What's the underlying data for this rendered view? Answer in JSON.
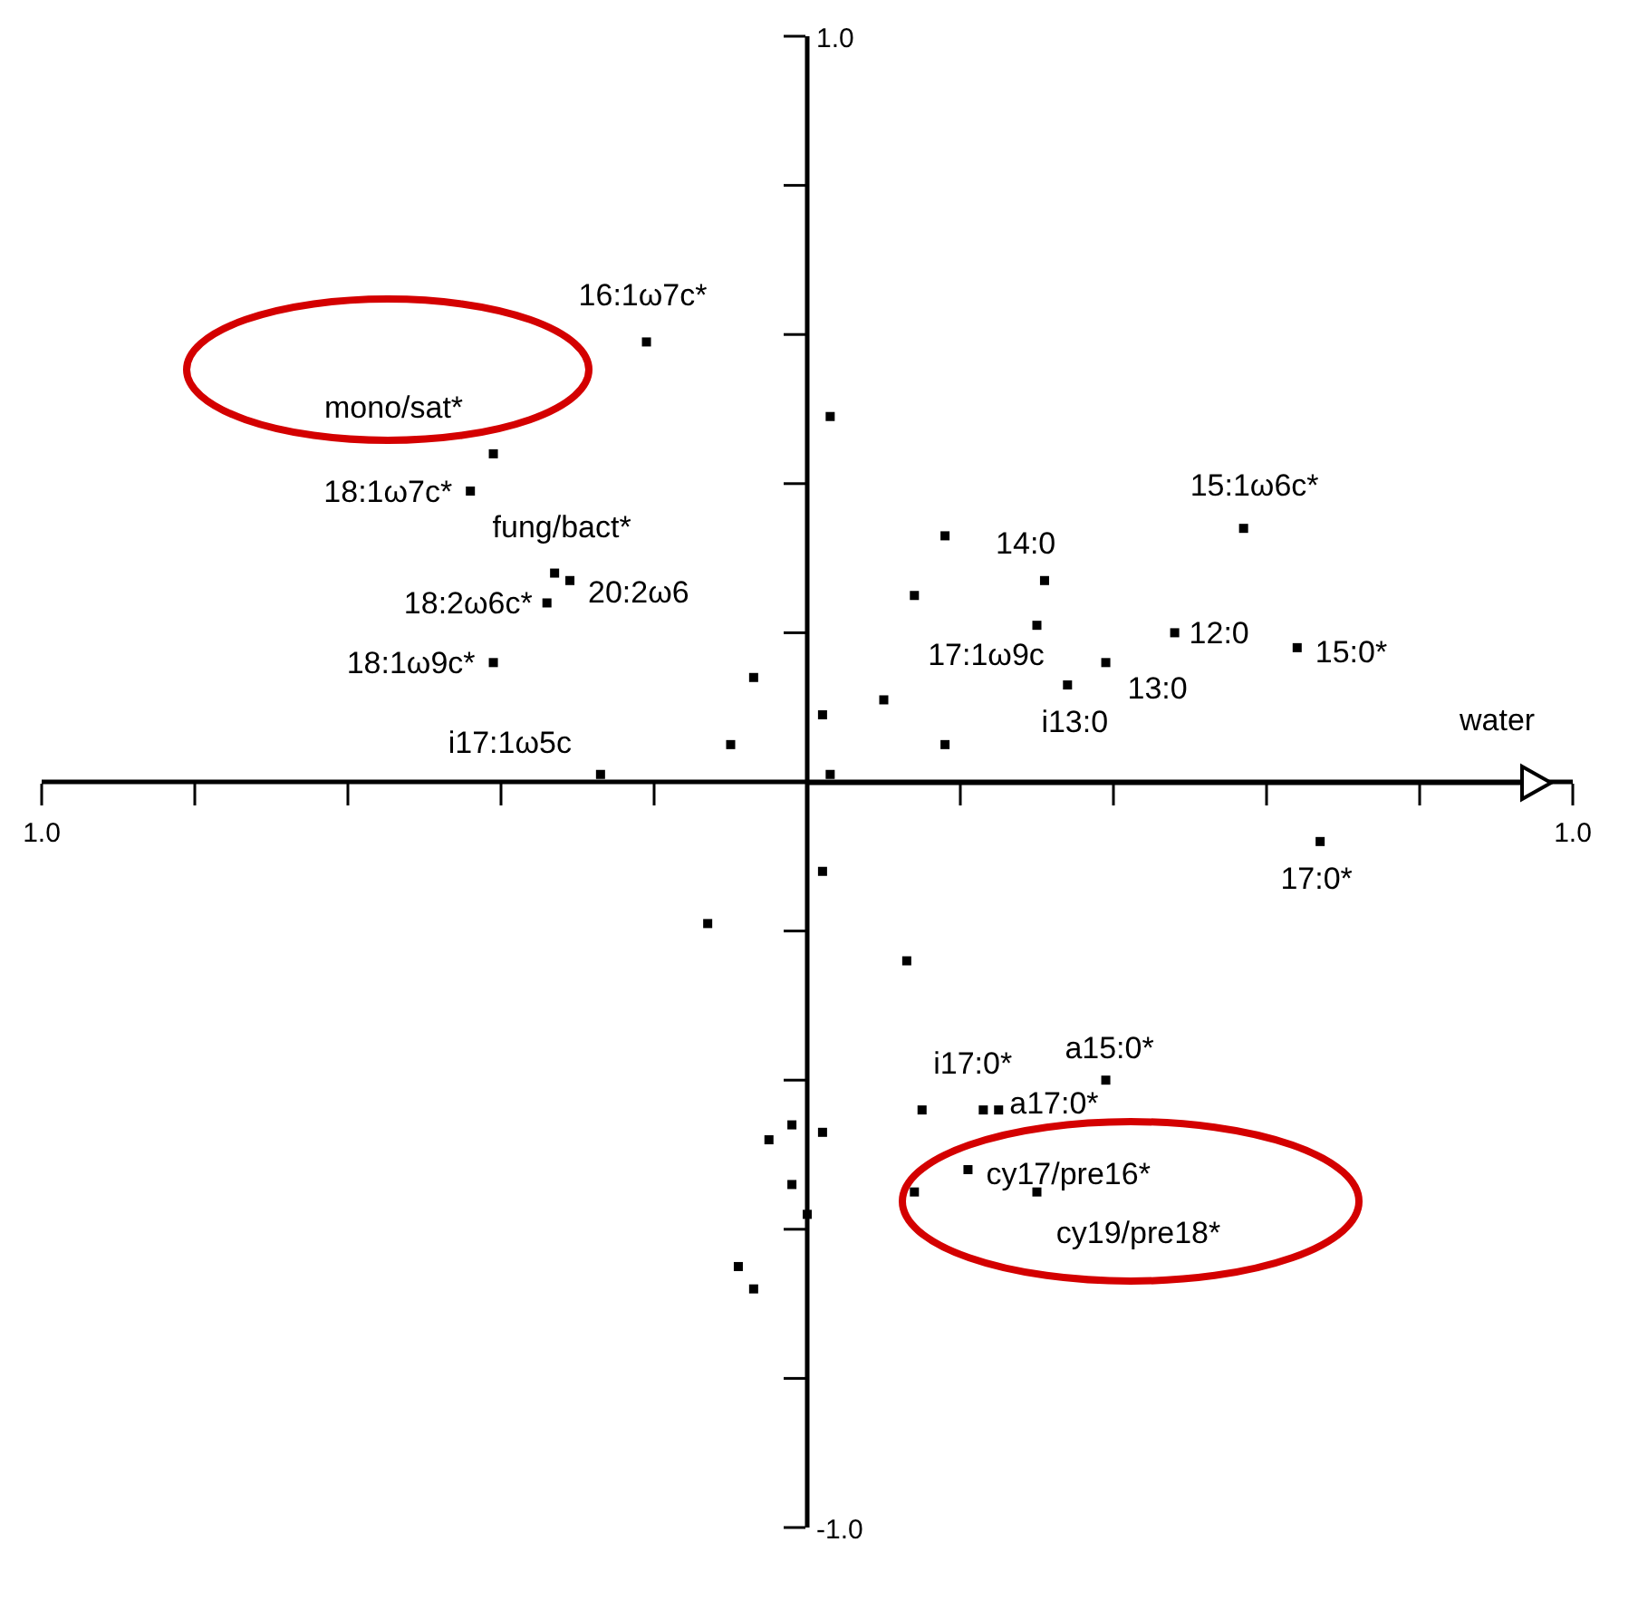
{
  "chart_data": {
    "type": "scatter",
    "xlim": [
      -1,
      1
    ],
    "ylim": [
      -1,
      1
    ],
    "xticks": [
      {
        "value": -1,
        "label": "1.0"
      },
      {
        "value": -0.8,
        "label": null
      },
      {
        "value": -0.6,
        "label": null
      },
      {
        "value": -0.4,
        "label": null
      },
      {
        "value": -0.2,
        "label": null
      },
      {
        "value": 0.2,
        "label": null
      },
      {
        "value": 0.4,
        "label": null
      },
      {
        "value": 0.6,
        "label": null
      },
      {
        "value": 0.8,
        "label": null
      },
      {
        "value": 1,
        "label": "1.0"
      }
    ],
    "yticks": [
      {
        "value": 1,
        "label": "1.0"
      },
      {
        "value": 0.8,
        "label": null
      },
      {
        "value": 0.6,
        "label": null
      },
      {
        "value": 0.4,
        "label": null
      },
      {
        "value": 0.2,
        "label": null
      },
      {
        "value": -0.2,
        "label": null
      },
      {
        "value": -0.4,
        "label": null
      },
      {
        "value": -0.6,
        "label": null
      },
      {
        "value": -0.8,
        "label": null
      },
      {
        "value": -1,
        "label": "-1.0"
      }
    ],
    "series": [
      {
        "marker": "square",
        "color": "#000000",
        "x": [
          -0.21,
          -0.41,
          -0.44,
          -0.33,
          -0.31,
          -0.34,
          -0.41,
          -0.27,
          0.18,
          0.3,
          0.39,
          0.34,
          0.48,
          0.64,
          0.57,
          0.67,
          0.39,
          0.15,
          0.25,
          0.21,
          0.3,
          0.03,
          -0.07,
          0.02,
          -0.1,
          0.03,
          0.14,
          0.31,
          0.1,
          0.18,
          0.02,
          -0.13,
          0.13,
          0.23,
          0.14,
          -0.02,
          -0.05,
          0.02,
          -0.02,
          0.0,
          -0.09,
          -0.07
        ],
        "values": [
          0.59,
          0.44,
          0.39,
          0.28,
          0.27,
          0.24,
          0.16,
          0.01,
          0.33,
          0.21,
          0.16,
          0.13,
          0.2,
          0.18,
          0.34,
          -0.08,
          -0.4,
          -0.44,
          -0.44,
          -0.52,
          -0.55,
          0.49,
          0.14,
          0.09,
          0.05,
          0.01,
          0.25,
          0.27,
          0.11,
          0.05,
          -0.12,
          -0.19,
          -0.24,
          -0.44,
          -0.55,
          -0.46,
          -0.48,
          -0.47,
          -0.54,
          -0.58,
          -0.65,
          -0.68
        ]
      }
    ],
    "annotations": [
      "water",
      {
        "text": "16:1ω7c*",
        "x": -0.21,
        "y": 0.59
      },
      {
        "text": "mono/sat*",
        "x": -0.41,
        "y": 0.44
      },
      {
        "text": "18:1ω7c*",
        "x": -0.44,
        "y": 0.39
      },
      {
        "text": "fung/bact*",
        "x": -0.33,
        "y": 0.28
      },
      {
        "text": "20:2ω6",
        "x": -0.31,
        "y": 0.27
      },
      {
        "text": "18:2ω6c*",
        "x": -0.34,
        "y": 0.24
      },
      {
        "text": "18:1ω9c*",
        "x": -0.41,
        "y": 0.16
      },
      {
        "text": "i17:1ω5c",
        "x": -0.27,
        "y": 0.01
      },
      {
        "text": "14:0",
        "x": 0.18,
        "y": 0.33
      },
      {
        "text": "17:1ω9c",
        "x": 0.3,
        "y": 0.21
      },
      {
        "text": "13:0",
        "x": 0.39,
        "y": 0.16
      },
      {
        "text": "i13:0",
        "x": 0.34,
        "y": 0.13
      },
      {
        "text": "12:0",
        "x": 0.48,
        "y": 0.2
      },
      {
        "text": "15:0*",
        "x": 0.64,
        "y": 0.18
      },
      {
        "text": "15:1ω6c*",
        "x": 0.57,
        "y": 0.34
      },
      {
        "text": "17:0*",
        "x": 0.67,
        "y": -0.08
      },
      {
        "text": "a15:0*",
        "x": 0.39,
        "y": -0.4
      },
      {
        "text": "i17:0*",
        "x": 0.15,
        "y": -0.44
      },
      {
        "text": "a17:0*",
        "x": 0.25,
        "y": -0.44
      },
      {
        "text": "cy17/pre16*",
        "x": 0.21,
        "y": -0.52
      },
      {
        "text": "cy19/pre18*",
        "x": 0.3,
        "y": -0.55
      }
    ]
  }
}
